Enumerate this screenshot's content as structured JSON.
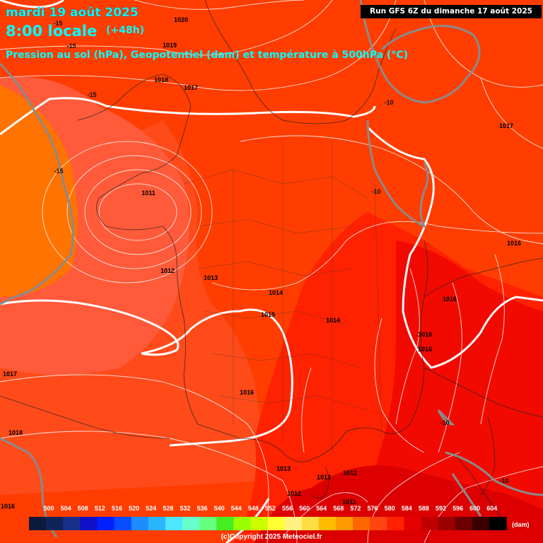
{
  "header": {
    "date": "mardi 19 août 2025",
    "time": "8:00 locale",
    "lead": "(+48h)",
    "subtitle": "Pression au sol (hPa), Geopotentiel (dam) et température à 500hPa (°C)",
    "run": "Run GFS 6Z du dimanche 17 août 2025"
  },
  "isobar_labels": [
    "1020",
    "1019",
    "1018",
    "1017",
    "1017",
    "1016",
    "1016",
    "1016",
    "1016",
    "1015",
    "1014",
    "1014",
    "1013",
    "1013",
    "1012",
    "1012",
    "1012",
    "1011",
    "1011",
    "1017",
    "1018",
    "1016",
    "1016"
  ],
  "temperature_labels": [
    "-15",
    "-15",
    "-15",
    "-15",
    "-10",
    "-10",
    "-10",
    "-10"
  ],
  "scale": {
    "ticks": [
      "500",
      "504",
      "508",
      "512",
      "516",
      "520",
      "524",
      "528",
      "532",
      "536",
      "540",
      "544",
      "548",
      "552",
      "556",
      "560",
      "564",
      "568",
      "572",
      "576",
      "580",
      "584",
      "588",
      "592",
      "596",
      "600",
      "604"
    ],
    "colors": [
      "#0b1a3a",
      "#10245a",
      "#1a2f8a",
      "#1010c8",
      "#0020ff",
      "#0a4cff",
      "#1c8cff",
      "#2bb5ff",
      "#4ce6ff",
      "#66ffcc",
      "#66ff80",
      "#44ee22",
      "#99ff00",
      "#ccff00",
      "#ffff33",
      "#fff280",
      "#ffdd44",
      "#ffbb00",
      "#ff9900",
      "#ff6600",
      "#ff4411",
      "#ff2200",
      "#e60000",
      "#c00000",
      "#990000",
      "#6a0000",
      "#3a0000",
      "#000000"
    ],
    "unit": "(dam)"
  },
  "copyright": "(c)Copyright 2025 Meteociel.fr"
}
